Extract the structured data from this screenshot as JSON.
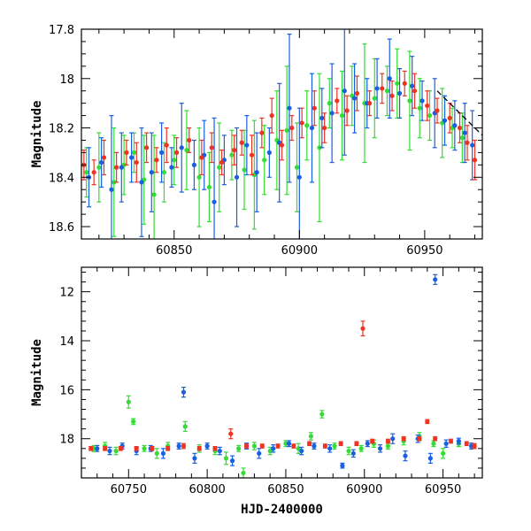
{
  "chart_data": [
    {
      "name": "zoomed-light-curve",
      "type": "scatter",
      "title": "",
      "xlabel": "",
      "ylabel": "Magnitude",
      "xlim": [
        60813,
        60973
      ],
      "ylim": [
        18.65,
        17.8
      ],
      "y_inverted": true,
      "xticks": [
        60850,
        60900,
        60950
      ],
      "xtick_labels": [
        "60850",
        "60900",
        "60950"
      ],
      "yticks": [
        17.8,
        18,
        18.2,
        18.4,
        18.6
      ],
      "ytick_labels": [
        "17.8",
        "18",
        "18.2",
        "18.4",
        "18.6"
      ],
      "grid": false,
      "legend": "none",
      "trend_line": {
        "x": [
          60955,
          60973
        ],
        "y": [
          18.05,
          18.23
        ],
        "style": "dashed",
        "color": "#000000"
      },
      "series": [
        {
          "name": "green",
          "color": "#33dd33",
          "x": [
            60815,
            60820,
            60826,
            60830,
            60834,
            60838,
            60842,
            60846,
            60850,
            60855,
            60860,
            60864,
            60868,
            60873,
            60878,
            60882,
            60886,
            60891,
            60895,
            60899,
            60903,
            60908,
            60912,
            60917,
            60921,
            60926,
            60930,
            60935,
            60939,
            60944,
            60948,
            60952,
            60957,
            60961,
            60965
          ],
          "y": [
            18.38,
            18.36,
            18.42,
            18.35,
            18.3,
            18.41,
            18.47,
            18.38,
            18.33,
            18.29,
            18.4,
            18.44,
            18.36,
            18.31,
            18.37,
            18.39,
            18.33,
            18.25,
            18.21,
            18.36,
            18.19,
            18.28,
            18.1,
            18.15,
            18.07,
            18.1,
            18.08,
            18.05,
            18.02,
            18.09,
            18.12,
            18.15,
            18.18,
            18.2,
            18.24
          ],
          "err": [
            0.1,
            0.14,
            0.22,
            0.12,
            0.08,
            0.18,
            0.24,
            0.12,
            0.1,
            0.16,
            0.2,
            0.14,
            0.18,
            0.1,
            0.16,
            0.22,
            0.14,
            0.2,
            0.26,
            0.18,
            0.14,
            0.3,
            0.1,
            0.18,
            0.12,
            0.24,
            0.16,
            0.1,
            0.14,
            0.2,
            0.12,
            0.1,
            0.14,
            0.08,
            0.1
          ]
        },
        {
          "name": "blue",
          "color": "#1a5fe0",
          "x": [
            60816,
            60821,
            60825,
            60829,
            60833,
            60837,
            60841,
            60845,
            60849,
            60853,
            60858,
            60862,
            60866,
            60870,
            60875,
            60879,
            60883,
            60888,
            60892,
            60896,
            60900,
            60905,
            60909,
            60913,
            60918,
            60922,
            60927,
            60931,
            60936,
            60940,
            60945,
            60949,
            60954,
            60958,
            60962,
            60966,
            60969
          ],
          "y": [
            18.4,
            18.34,
            18.45,
            18.36,
            18.32,
            18.42,
            18.38,
            18.3,
            18.36,
            18.28,
            18.35,
            18.31,
            18.5,
            18.33,
            18.4,
            18.27,
            18.38,
            18.3,
            18.26,
            18.12,
            18.4,
            18.2,
            18.16,
            18.14,
            18.05,
            18.08,
            18.1,
            18.04,
            18.0,
            18.06,
            18.03,
            18.09,
            18.14,
            18.17,
            18.19,
            18.22,
            18.27
          ],
          "err": [
            0.12,
            0.1,
            0.3,
            0.14,
            0.1,
            0.22,
            0.16,
            0.12,
            0.08,
            0.18,
            0.1,
            0.14,
            0.34,
            0.1,
            0.2,
            0.12,
            0.16,
            0.1,
            0.24,
            0.3,
            0.28,
            0.22,
            0.12,
            0.2,
            0.26,
            0.14,
            0.1,
            0.12,
            0.16,
            0.1,
            0.12,
            0.08,
            0.14,
            0.1,
            0.1,
            0.12,
            0.14
          ]
        },
        {
          "name": "red",
          "color": "#ee3322",
          "x": [
            60814,
            60818,
            60822,
            60827,
            60831,
            60835,
            60839,
            60843,
            60847,
            60851,
            60856,
            60861,
            60865,
            60869,
            60874,
            60877,
            60881,
            60885,
            60889,
            60893,
            60897,
            60901,
            60906,
            60910,
            60915,
            60919,
            60923,
            60928,
            60933,
            60937,
            60942,
            60946,
            60951,
            60955,
            60960,
            60964,
            60967,
            60970
          ],
          "y": [
            18.35,
            18.38,
            18.32,
            18.36,
            18.3,
            18.34,
            18.28,
            18.33,
            18.27,
            18.3,
            18.25,
            18.32,
            18.28,
            18.34,
            18.29,
            18.26,
            18.31,
            18.22,
            18.15,
            18.27,
            18.2,
            18.18,
            18.12,
            18.2,
            18.09,
            18.13,
            18.06,
            18.1,
            18.04,
            18.07,
            18.02,
            18.05,
            18.11,
            18.13,
            18.16,
            18.2,
            18.26,
            18.33
          ],
          "err": [
            0.06,
            0.05,
            0.07,
            0.06,
            0.05,
            0.08,
            0.06,
            0.05,
            0.07,
            0.06,
            0.05,
            0.07,
            0.06,
            0.05,
            0.06,
            0.05,
            0.08,
            0.06,
            0.07,
            0.06,
            0.05,
            0.06,
            0.07,
            0.06,
            0.05,
            0.06,
            0.07,
            0.05,
            0.06,
            0.06,
            0.05,
            0.07,
            0.06,
            0.05,
            0.06,
            0.06,
            0.07,
            0.08
          ]
        }
      ]
    },
    {
      "name": "full-light-curve",
      "type": "scatter",
      "title": "",
      "xlabel": "HJD-2400000",
      "ylabel": "Magnitude",
      "xlim": [
        60720,
        60975
      ],
      "ylim": [
        19.6,
        11.0
      ],
      "y_inverted": true,
      "xticks": [
        60750,
        60800,
        60850,
        60900,
        60950
      ],
      "xtick_labels": [
        "60750",
        "60800",
        "60850",
        "60900",
        "60950"
      ],
      "yticks": [
        12,
        14,
        16,
        18
      ],
      "ytick_labels": [
        "12",
        "14",
        "16",
        "18"
      ],
      "grid": false,
      "legend": "none",
      "series": [
        {
          "name": "green",
          "color": "#33dd33",
          "x": [
            60728,
            60735,
            60742,
            60750,
            60753,
            60760,
            60768,
            60775,
            60786,
            60795,
            60805,
            60812,
            60820,
            60823,
            60830,
            60840,
            60850,
            60858,
            60866,
            60873,
            60881,
            60890,
            60898,
            60906,
            60915,
            60925,
            60935,
            60944,
            60950,
            60960
          ],
          "y": [
            18.4,
            18.3,
            18.5,
            16.5,
            17.3,
            18.4,
            18.6,
            18.3,
            17.5,
            18.4,
            18.5,
            18.8,
            18.4,
            19.4,
            18.3,
            18.5,
            18.2,
            18.4,
            17.9,
            17.0,
            18.3,
            18.5,
            18.4,
            18.2,
            18.3,
            18.1,
            17.9,
            18.2,
            18.6,
            18.2
          ],
          "err": [
            0.12,
            0.15,
            0.15,
            0.25,
            0.12,
            0.12,
            0.2,
            0.15,
            0.2,
            0.15,
            0.15,
            0.25,
            0.12,
            0.2,
            0.15,
            0.15,
            0.12,
            0.2,
            0.15,
            0.15,
            0.12,
            0.15,
            0.12,
            0.15,
            0.12,
            0.15,
            0.15,
            0.12,
            0.2,
            0.12
          ]
        },
        {
          "name": "blue",
          "color": "#1a5fe0",
          "x": [
            60730,
            60738,
            60746,
            60755,
            60764,
            60772,
            60782,
            60785,
            60792,
            60800,
            60808,
            60816,
            60825,
            60833,
            60842,
            60852,
            60860,
            60868,
            60878,
            60886,
            60893,
            60902,
            60910,
            60918,
            60926,
            60934,
            60942,
            60945,
            60952,
            60960,
            60968
          ],
          "y": [
            18.4,
            18.5,
            18.3,
            18.5,
            18.4,
            18.6,
            18.3,
            16.1,
            18.8,
            18.3,
            18.5,
            18.9,
            18.3,
            18.6,
            18.4,
            18.2,
            18.5,
            18.3,
            18.4,
            19.1,
            18.6,
            18.2,
            18.4,
            18.0,
            18.7,
            18.0,
            18.8,
            11.5,
            18.2,
            18.1,
            18.3
          ],
          "err": [
            0.12,
            0.15,
            0.12,
            0.15,
            0.12,
            0.2,
            0.12,
            0.2,
            0.2,
            0.12,
            0.15,
            0.2,
            0.12,
            0.2,
            0.15,
            0.12,
            0.15,
            0.12,
            0.15,
            0.1,
            0.15,
            0.12,
            0.15,
            0.2,
            0.2,
            0.15,
            0.2,
            0.2,
            0.15,
            0.12,
            0.12
          ]
        },
        {
          "name": "red",
          "color": "#ee3322",
          "x": [
            60726,
            60735,
            60745,
            60755,
            60765,
            60775,
            60785,
            60795,
            60805,
            60815,
            60825,
            60835,
            60845,
            60855,
            60865,
            60875,
            60885,
            60895,
            60899,
            60905,
            60915,
            60925,
            60935,
            60940,
            60945,
            60955,
            60965,
            60970
          ],
          "y": [
            18.4,
            18.4,
            18.4,
            18.4,
            18.4,
            18.4,
            18.3,
            18.4,
            18.4,
            17.8,
            18.3,
            18.3,
            18.3,
            18.3,
            18.2,
            18.3,
            18.2,
            18.2,
            13.5,
            18.1,
            18.1,
            18.0,
            18.0,
            17.3,
            18.0,
            18.1,
            18.2,
            18.3
          ],
          "err": [
            0.08,
            0.08,
            0.08,
            0.08,
            0.08,
            0.08,
            0.1,
            0.08,
            0.08,
            0.2,
            0.08,
            0.08,
            0.08,
            0.08,
            0.08,
            0.08,
            0.08,
            0.08,
            0.3,
            0.08,
            0.08,
            0.08,
            0.08,
            0.08,
            0.08,
            0.08,
            0.08,
            0.1
          ]
        }
      ]
    }
  ]
}
